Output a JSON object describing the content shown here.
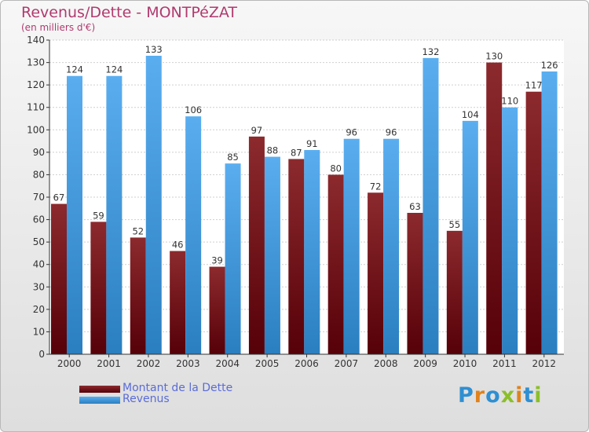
{
  "header": {
    "title": "Revenus/Dette - MONTPéZAT",
    "subtitle": "(en milliers d'€)"
  },
  "chart_data": {
    "type": "bar",
    "categories": [
      "2000",
      "2001",
      "2002",
      "2003",
      "2004",
      "2005",
      "2006",
      "2007",
      "2008",
      "2009",
      "2010",
      "2011",
      "2012"
    ],
    "series": [
      {
        "name": "Montant de la Dette",
        "values": [
          67,
          59,
          52,
          46,
          39,
          97,
          87,
          80,
          72,
          63,
          55,
          130,
          117
        ],
        "color": "#7a1a22"
      },
      {
        "name": "Revenus",
        "values": [
          124,
          124,
          133,
          106,
          85,
          88,
          91,
          96,
          96,
          132,
          104,
          110,
          126
        ],
        "color": "#4aa3e6"
      }
    ],
    "ylim": [
      0,
      140
    ],
    "yticks": [
      0,
      10,
      20,
      30,
      40,
      50,
      60,
      70,
      80,
      90,
      100,
      110,
      120,
      130,
      140
    ],
    "grid": true,
    "legend": "bottom-left"
  },
  "logo": {
    "letters": [
      "P",
      "r",
      "o",
      "x",
      "i",
      "t",
      "i"
    ],
    "colors": [
      "#2f8fd1",
      "#e0821d",
      "#2f8fd1",
      "#8bbf2a",
      "#e0821d",
      "#2f8fd1",
      "#8bbf2a"
    ]
  }
}
